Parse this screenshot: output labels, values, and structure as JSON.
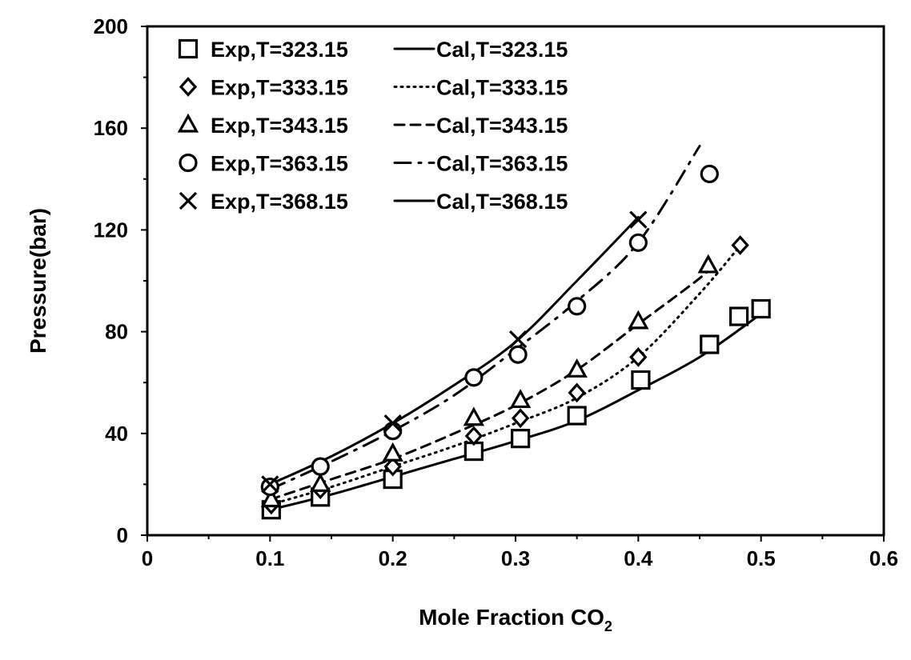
{
  "chart_data": {
    "type": "scatter",
    "title": "",
    "xlabel": "Mole Fraction CO",
    "xlabel_subscript": "2",
    "ylabel": "Pressure(bar)",
    "xlim": [
      0,
      0.6
    ],
    "ylim": [
      0,
      200
    ],
    "x_ticks": [
      "0",
      "0.1",
      "0.2",
      "0.3",
      "0.4",
      "0.5",
      "0.6"
    ],
    "y_ticks": [
      "0",
      "40",
      "80",
      "120",
      "160",
      "200"
    ],
    "grid": false,
    "legend_position": "top-left",
    "experimental": [
      {
        "name": "Exp,T=323.15",
        "marker": "square",
        "x": [
          0.101,
          0.141,
          0.2,
          0.266,
          0.304,
          0.35,
          0.402,
          0.458,
          0.482,
          0.5
        ],
        "y": [
          10,
          15,
          22,
          33,
          38,
          47,
          61,
          75,
          86,
          89
        ]
      },
      {
        "name": "Exp,T=333.15",
        "marker": "diamond",
        "x": [
          0.101,
          0.141,
          0.2,
          0.266,
          0.304,
          0.35,
          0.4,
          0.483
        ],
        "y": [
          12,
          18,
          27,
          39,
          46,
          56,
          70,
          114
        ]
      },
      {
        "name": "Exp,T=343.15",
        "marker": "triangle",
        "x": [
          0.101,
          0.141,
          0.2,
          0.266,
          0.304,
          0.35,
          0.4,
          0.457
        ],
        "y": [
          14,
          20,
          32,
          46,
          53,
          65,
          84,
          106
        ]
      },
      {
        "name": "Exp,T=363.15",
        "marker": "circle",
        "x": [
          0.1,
          0.141,
          0.2,
          0.266,
          0.302,
          0.35,
          0.4,
          0.458
        ],
        "y": [
          19,
          27,
          41,
          62,
          71,
          90,
          115,
          142
        ]
      },
      {
        "name": "Exp,T=368.15",
        "marker": "cross",
        "x": [
          0.1,
          0.2,
          0.302,
          0.4
        ],
        "y": [
          20,
          44,
          77,
          124
        ]
      }
    ],
    "calculated": [
      {
        "name": "Cal,T=323.15",
        "style": "solid",
        "x": [
          0.1,
          0.15,
          0.2,
          0.25,
          0.3,
          0.35,
          0.4,
          0.45,
          0.5
        ],
        "y": [
          10,
          16,
          23,
          30,
          37,
          45,
          57,
          70,
          87
        ]
      },
      {
        "name": "Cal,T=333.15",
        "style": "dotted",
        "x": [
          0.1,
          0.15,
          0.2,
          0.25,
          0.3,
          0.35,
          0.4,
          0.45,
          0.48
        ],
        "y": [
          12,
          19,
          27,
          35,
          44,
          54,
          70,
          95,
          112
        ]
      },
      {
        "name": "Cal,T=343.15",
        "style": "dashed",
        "x": [
          0.1,
          0.15,
          0.2,
          0.25,
          0.3,
          0.35,
          0.4,
          0.45,
          0.46
        ],
        "y": [
          14,
          22,
          30,
          40,
          51,
          65,
          83,
          101,
          106
        ]
      },
      {
        "name": "Cal,T=363.15",
        "style": "dashdot",
        "x": [
          0.1,
          0.15,
          0.2,
          0.25,
          0.3,
          0.35,
          0.4,
          0.45
        ],
        "y": [
          18,
          29,
          41,
          55,
          73,
          92,
          115,
          153
        ]
      },
      {
        "name": "Cal,T=368.15",
        "style": "solid",
        "x": [
          0.1,
          0.15,
          0.2,
          0.25,
          0.3,
          0.35,
          0.4
        ],
        "y": [
          20,
          31,
          44,
          59,
          76,
          100,
          125
        ]
      }
    ]
  },
  "legend": {
    "exp_labels": [
      "Exp,T=323.15",
      "Exp,T=333.15",
      "Exp,T=343.15",
      "Exp,T=363.15",
      "Exp,T=368.15"
    ],
    "cal_labels": [
      "Cal,T=323.15",
      "Cal,T=333.15",
      "Cal,T=343.15",
      "Cal,T=363.15",
      "Cal,T=368.15"
    ]
  },
  "colors": {
    "ink": "#000000",
    "background": "#ffffff"
  }
}
